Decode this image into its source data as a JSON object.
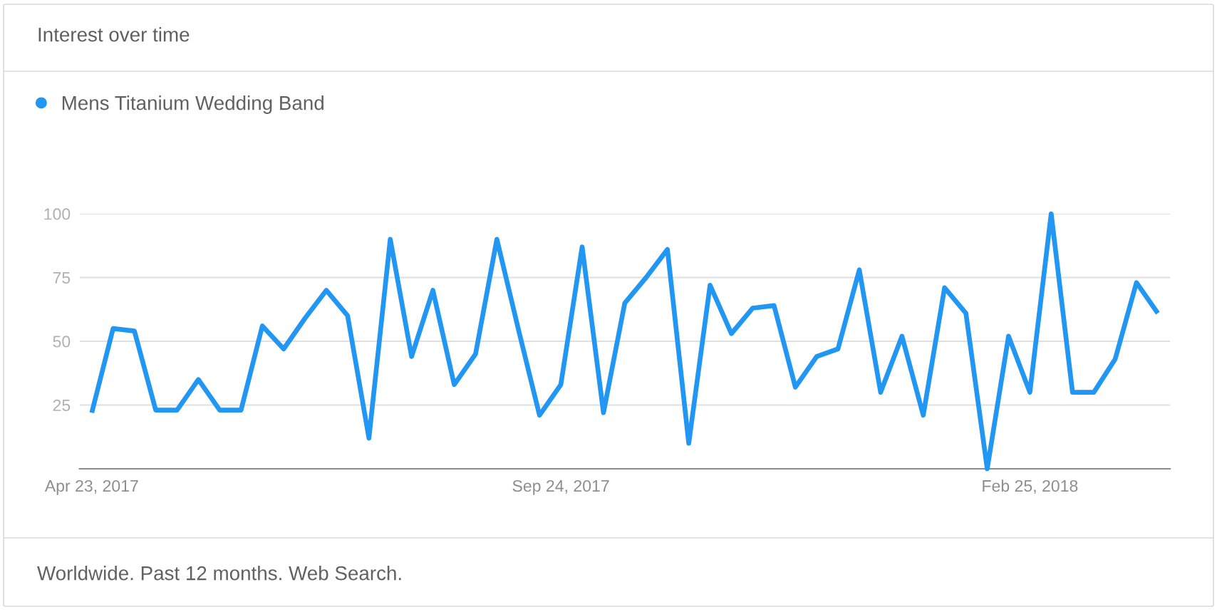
{
  "chart_data": {
    "type": "line",
    "title": "Interest over time",
    "x": [
      "2017-04-23",
      "2017-04-30",
      "2017-05-07",
      "2017-05-14",
      "2017-05-21",
      "2017-05-28",
      "2017-06-04",
      "2017-06-11",
      "2017-06-18",
      "2017-06-25",
      "2017-07-02",
      "2017-07-09",
      "2017-07-16",
      "2017-07-23",
      "2017-07-30",
      "2017-08-06",
      "2017-08-13",
      "2017-08-20",
      "2017-08-27",
      "2017-09-03",
      "2017-09-10",
      "2017-09-17",
      "2017-09-24",
      "2017-10-01",
      "2017-10-08",
      "2017-10-15",
      "2017-10-22",
      "2017-10-29",
      "2017-11-05",
      "2017-11-12",
      "2017-11-19",
      "2017-11-26",
      "2017-12-03",
      "2017-12-10",
      "2017-12-17",
      "2017-12-24",
      "2017-12-31",
      "2018-01-07",
      "2018-01-14",
      "2018-01-21",
      "2018-01-28",
      "2018-02-04",
      "2018-02-11",
      "2018-02-18",
      "2018-02-25",
      "2018-03-04",
      "2018-03-11",
      "2018-03-18",
      "2018-03-25",
      "2018-04-01",
      "2018-04-08"
    ],
    "series": [
      {
        "name": "Mens Titanium Wedding Band",
        "color": "#2196f3",
        "values": [
          22,
          55,
          54,
          23,
          23,
          35,
          23,
          23,
          56,
          47,
          59,
          70,
          60,
          12,
          90,
          44,
          70,
          33,
          45,
          90,
          55,
          21,
          33,
          87,
          22,
          65,
          75,
          86,
          10,
          72,
          53,
          63,
          64,
          32,
          44,
          47,
          78,
          30,
          52,
          21,
          71,
          61,
          0,
          52,
          30,
          100,
          30,
          30,
          43,
          73,
          61
        ]
      }
    ],
    "xlim": [
      "2017-04-19",
      "2018-04-12"
    ],
    "xticks": [
      {
        "value": "2017-04-23",
        "label": "Apr 23, 2017"
      },
      {
        "value": "2017-09-24",
        "label": "Sep 24, 2017"
      },
      {
        "value": "2018-02-25",
        "label": "Feb 25, 2018"
      }
    ],
    "ylim": [
      0,
      100
    ],
    "yticks": [
      25,
      50,
      75,
      100
    ],
    "grid": "y",
    "legend": "top left",
    "line_style": "solid",
    "annotations": [
      "Worldwide. Past 12 months. Web Search."
    ]
  }
}
